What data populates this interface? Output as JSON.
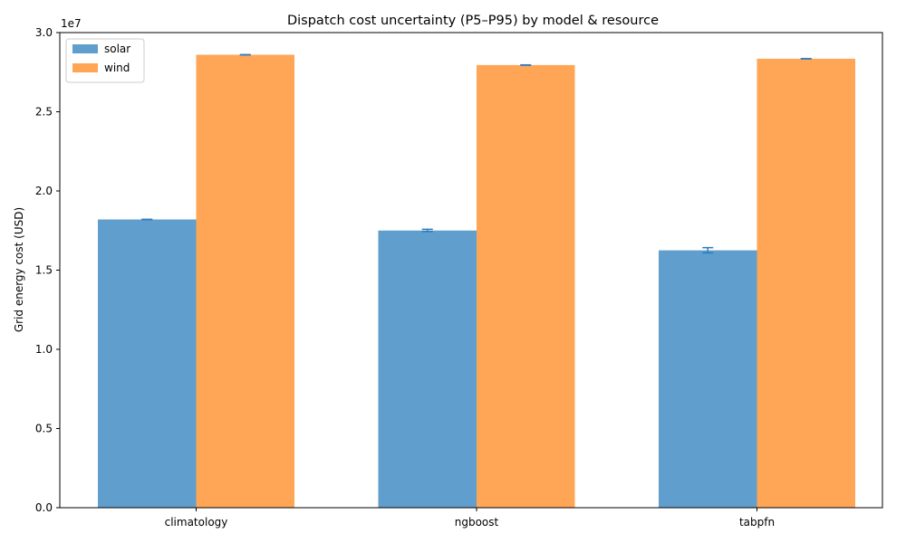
{
  "chart_data": {
    "type": "bar",
    "title": "Dispatch cost uncertainty (P5–P95) by model & resource",
    "xlabel": "",
    "ylabel": "Grid energy cost (USD)",
    "y_offset_label": "1e7",
    "ylim": [
      0,
      30000000
    ],
    "yticks": [
      0,
      5000000,
      10000000,
      15000000,
      20000000,
      25000000,
      30000000
    ],
    "ytick_labels": [
      "0.0",
      "0.5",
      "1.0",
      "1.5",
      "2.0",
      "2.5",
      "3.0"
    ],
    "categories": [
      "climatology",
      "ngboost",
      "tabpfn"
    ],
    "series": [
      {
        "name": "solar",
        "color": "#5f9ecd",
        "values": [
          18200000,
          17500000,
          16250000
        ],
        "p5": [
          18190000,
          17440000,
          16090000
        ],
        "p95": [
          18210000,
          17580000,
          16420000
        ]
      },
      {
        "name": "wind",
        "color": "#ffa556",
        "values": [
          28600000,
          27950000,
          28350000
        ],
        "p5": [
          28590000,
          27940000,
          28340000
        ],
        "p95": [
          28610000,
          27960000,
          28360000
        ]
      }
    ],
    "errorbar_color": "#2f7cc0",
    "legend_position": "top-left",
    "grid": false
  }
}
